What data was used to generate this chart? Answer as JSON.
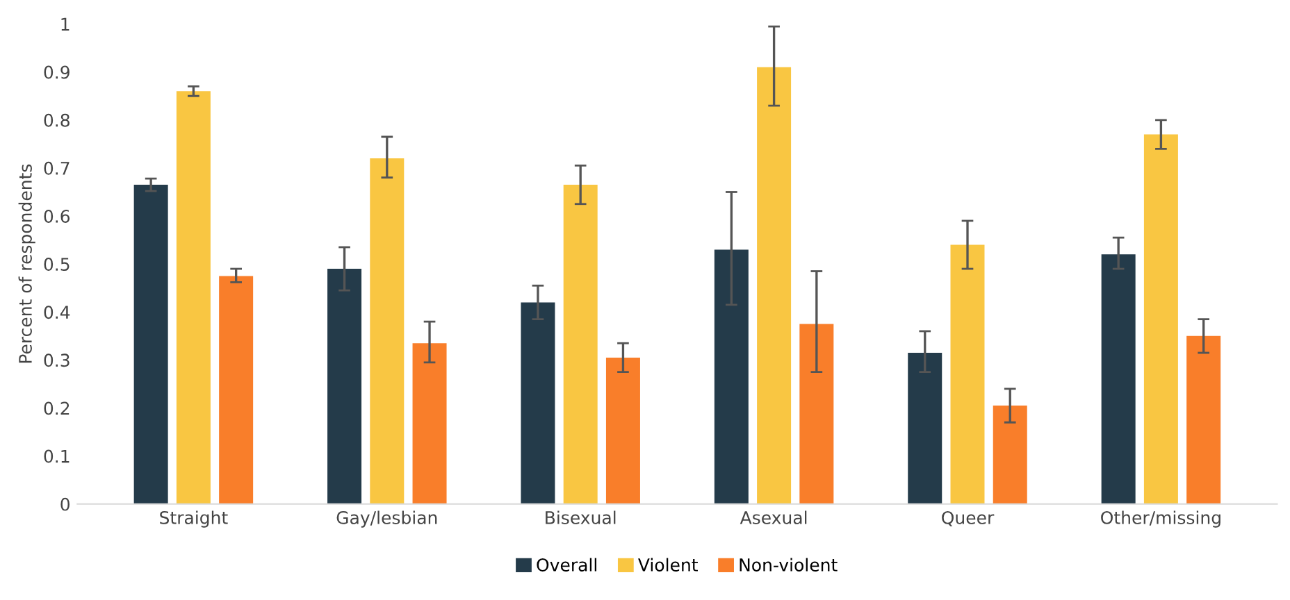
{
  "chart_data": {
    "type": "bar",
    "ylabel": "Percent of respondents",
    "categories": [
      "Straight",
      "Gay/lesbian",
      "Bisexual",
      "Asexual",
      "Queer",
      "Other/missing"
    ],
    "series": [
      {
        "name": "Overall",
        "color": "#243b4a",
        "values": [
          0.665,
          0.49,
          0.42,
          0.53,
          0.315,
          0.52
        ],
        "errors": [
          [
            0.652,
            0.678
          ],
          [
            0.445,
            0.535
          ],
          [
            0.385,
            0.455
          ],
          [
            0.415,
            0.65
          ],
          [
            0.275,
            0.36
          ],
          [
            0.49,
            0.555
          ]
        ]
      },
      {
        "name": "Violent",
        "color": "#f9c642",
        "values": [
          0.86,
          0.72,
          0.665,
          0.91,
          0.54,
          0.77
        ],
        "errors": [
          [
            0.85,
            0.87
          ],
          [
            0.68,
            0.765
          ],
          [
            0.625,
            0.705
          ],
          [
            0.83,
            0.995
          ],
          [
            0.49,
            0.59
          ],
          [
            0.74,
            0.8
          ]
        ]
      },
      {
        "name": "Non-violent",
        "color": "#f97e2a",
        "values": [
          0.475,
          0.335,
          0.305,
          0.375,
          0.205,
          0.35
        ],
        "errors": [
          [
            0.462,
            0.49
          ],
          [
            0.295,
            0.38
          ],
          [
            0.275,
            0.335
          ],
          [
            0.275,
            0.485
          ],
          [
            0.17,
            0.24
          ],
          [
            0.315,
            0.385
          ]
        ]
      }
    ],
    "ylim": [
      0,
      1
    ],
    "yticks": [
      0,
      0.1,
      0.2,
      0.3,
      0.4,
      0.5,
      0.6,
      0.7,
      0.8,
      0.9,
      1
    ],
    "grid": false,
    "legend": "bottom"
  }
}
